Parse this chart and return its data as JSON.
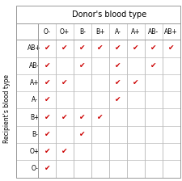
{
  "title": "Donor's blood type",
  "ylabel": "Recipient's blood type",
  "donor_types": [
    "O-",
    "O+",
    "B-",
    "B+",
    "A-",
    "A+",
    "AB-",
    "AB+"
  ],
  "recipient_types": [
    "AB+",
    "AB-",
    "A+",
    "A-",
    "B+",
    "B-",
    "O+",
    "O-"
  ],
  "checks": [
    [
      1,
      1,
      1,
      1,
      1,
      1,
      1,
      1
    ],
    [
      1,
      0,
      1,
      0,
      1,
      0,
      1,
      0
    ],
    [
      1,
      1,
      0,
      0,
      1,
      1,
      0,
      0
    ],
    [
      1,
      0,
      0,
      0,
      1,
      0,
      0,
      0
    ],
    [
      1,
      1,
      1,
      1,
      0,
      0,
      0,
      0
    ],
    [
      1,
      0,
      1,
      0,
      0,
      0,
      0,
      0
    ],
    [
      1,
      1,
      0,
      0,
      0,
      0,
      0,
      0
    ],
    [
      1,
      0,
      0,
      0,
      0,
      0,
      0,
      0
    ]
  ],
  "check_color": "#cc0000",
  "grid_color": "#bbbbbb",
  "bg_color": "#ffffff",
  "title_fontsize": 7.0,
  "tick_fontsize": 5.5,
  "ylabel_fontsize": 5.5,
  "check_fontsize": 6.5
}
